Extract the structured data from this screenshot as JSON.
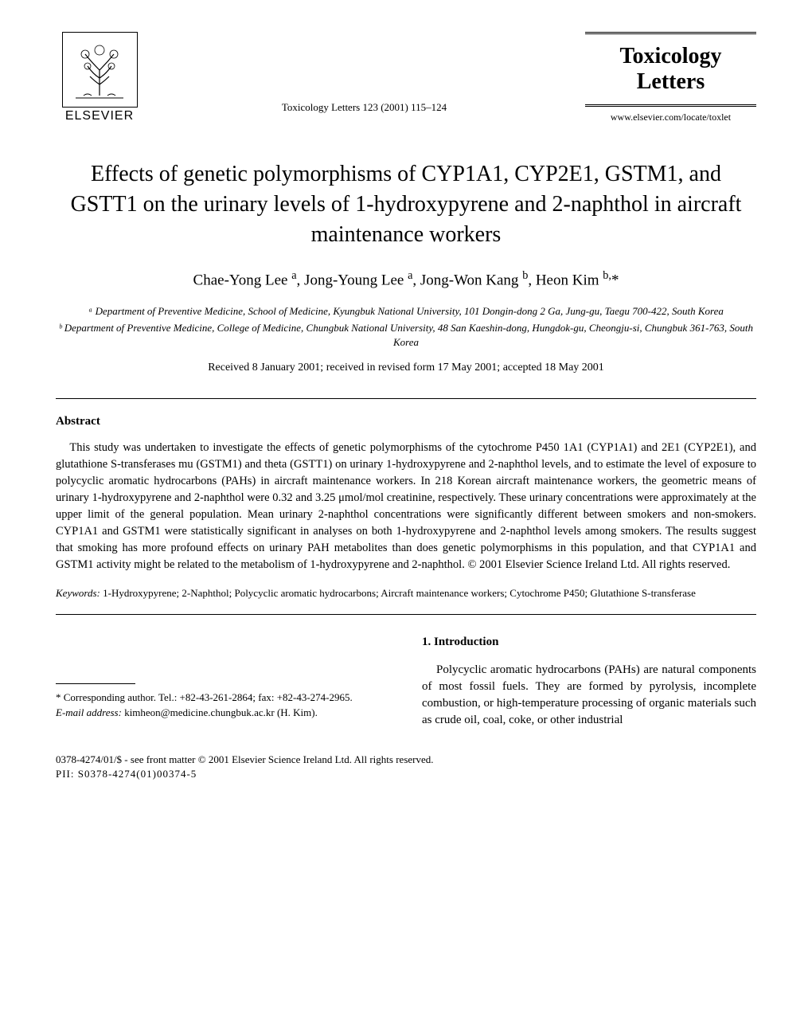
{
  "header": {
    "publisher_name": "ELSEVIER",
    "journal_reference": "Toxicology Letters 123 (2001) 115–124",
    "journal_title_line1": "Toxicology",
    "journal_title_line2": "Letters",
    "journal_url": "www.elsevier.com/locate/toxlet"
  },
  "article": {
    "title": "Effects of genetic polymorphisms of CYP1A1, CYP2E1, GSTM1, and GSTT1 on the urinary levels of 1-hydroxypyrene and 2-naphthol in aircraft maintenance workers",
    "authors_html": "Chae-Yong Lee <sup>a</sup>, Jong-Young Lee <sup>a</sup>, Jong-Won Kang <sup>b</sup>, Heon Kim <sup>b,</sup>*",
    "affiliation_a": "ᵃ Department of Preventive Medicine, School of Medicine, Kyungbuk National University, 101 Dongin-dong 2 Ga, Jung-gu, Taegu 700-422, South Korea",
    "affiliation_b": "ᵇ Department of Preventive Medicine, College of Medicine, Chungbuk National University, 48 San Kaeshin-dong, Hungdok-gu, Cheongju-si, Chungbuk 361-763, South Korea",
    "received": "Received 8 January 2001; received in revised form 17 May 2001; accepted 18 May 2001"
  },
  "abstract": {
    "heading": "Abstract",
    "text": "This study was undertaken to investigate the effects of genetic polymorphisms of the cytochrome P450 1A1 (CYP1A1) and 2E1 (CYP2E1), and glutathione S-transferases mu (GSTM1) and theta (GSTT1) on urinary 1-hydroxypyrene and 2-naphthol levels, and to estimate the level of exposure to polycyclic aromatic hydrocarbons (PAHs) in aircraft maintenance workers. In 218 Korean aircraft maintenance workers, the geometric means of urinary 1-hydroxypyrene and 2-naphthol were 0.32 and 3.25 μmol/mol creatinine, respectively. These urinary concentrations were approximately at the upper limit of the general population. Mean urinary 2-naphthol concentrations were significantly different between smokers and non-smokers. CYP1A1 and GSTM1 were statistically significant in analyses on both 1-hydroxypyrene and 2-naphthol levels among smokers. The results suggest that smoking has more profound effects on urinary PAH metabolites than does genetic polymorphisms in this population, and that CYP1A1 and GSTM1 activity might be related to the metabolism of 1-hydroxypyrene and 2-naphthol. © 2001 Elsevier Science Ireland Ltd. All rights reserved.",
    "keywords_label": "Keywords:",
    "keywords": " 1-Hydroxypyrene; 2-Naphthol; Polycyclic aromatic hydrocarbons; Aircraft maintenance workers; Cytochrome P450; Glutathione S-transferase"
  },
  "body": {
    "footnote_corresponding": "* Corresponding author. Tel.: +82-43-261-2864; fax: +82-43-274-2965.",
    "footnote_email_label": "E-mail address:",
    "footnote_email": " kimheon@medicine.chungbuk.ac.kr (H. Kim).",
    "section_heading": "1. Introduction",
    "intro_para": "Polycyclic aromatic hydrocarbons (PAHs) are natural components of most fossil fuels. They are formed by pyrolysis, incomplete combustion, or high-temperature processing of organic materials such as crude oil, coal, coke, or other industrial"
  },
  "footer": {
    "copyright": "0378-4274/01/$ - see front matter © 2001 Elsevier Science Ireland Ltd. All rights reserved.",
    "pii": "PII: S0378-4274(01)00374-5"
  },
  "colors": {
    "text": "#000000",
    "background": "#ffffff",
    "rule": "#000000"
  },
  "typography": {
    "title_fontsize": 28,
    "body_fontsize": 14.5,
    "author_fontsize": 19,
    "affiliation_fontsize": 13,
    "footnote_fontsize": 13
  }
}
